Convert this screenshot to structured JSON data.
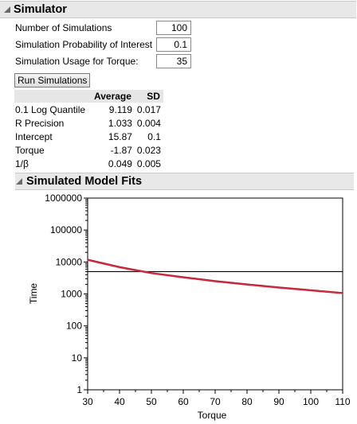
{
  "simulator": {
    "title": "Simulator",
    "params": [
      {
        "label": "Number of Simulations",
        "value": "100"
      },
      {
        "label": "Simulation Probability of Interest",
        "value": "0.1"
      },
      {
        "label": "Simulation Usage for Torque:",
        "value": "35"
      }
    ],
    "run_label": "Run Simulations",
    "table": {
      "headers": [
        "",
        "Average",
        "SD"
      ],
      "rows": [
        {
          "label": "0.1 Log Quantile",
          "average": "9.119",
          "sd": "0.017"
        },
        {
          "label": "R Precision",
          "average": "1.033",
          "sd": "0.004"
        },
        {
          "label": "Intercept",
          "average": "15.87",
          "sd": "0.1"
        },
        {
          "label": "Torque",
          "average": "-1.87",
          "sd": "0.023"
        },
        {
          "label": "1/β",
          "average": "0.049",
          "sd": "0.005"
        }
      ]
    }
  },
  "fits": {
    "title": "Simulated Model Fits"
  },
  "chart_data": {
    "type": "line",
    "title": "",
    "xlabel": "Torque",
    "ylabel": "Time",
    "xlim": [
      30,
      110
    ],
    "ylim": [
      1,
      1000000
    ],
    "yscale": "log",
    "x_ticks": [
      30,
      40,
      50,
      60,
      70,
      80,
      90,
      100,
      110
    ],
    "y_ticks": [
      1,
      10,
      100,
      1000,
      10000,
      100000,
      1000000
    ],
    "y_tick_labels": [
      "1",
      "10",
      "100",
      "1000",
      "10000",
      "100000",
      "1000000"
    ],
    "grid": false,
    "series": [
      {
        "color": "#7a1f2b",
        "x": [
          30,
          40,
          50,
          60,
          70,
          80,
          90,
          100,
          110
        ],
        "y": [
          11900,
          7000,
          4550,
          3350,
          2550,
          2000,
          1600,
          1320,
          1080
        ]
      },
      {
        "color": "#d9263a",
        "x": [
          30,
          40,
          50,
          60,
          70,
          80,
          90,
          100,
          110
        ],
        "y": [
          11500,
          6800,
          4450,
          3250,
          2480,
          1950,
          1560,
          1280,
          1050
        ]
      }
    ],
    "reference_line": {
      "y": 5000,
      "color": "#000000"
    }
  }
}
